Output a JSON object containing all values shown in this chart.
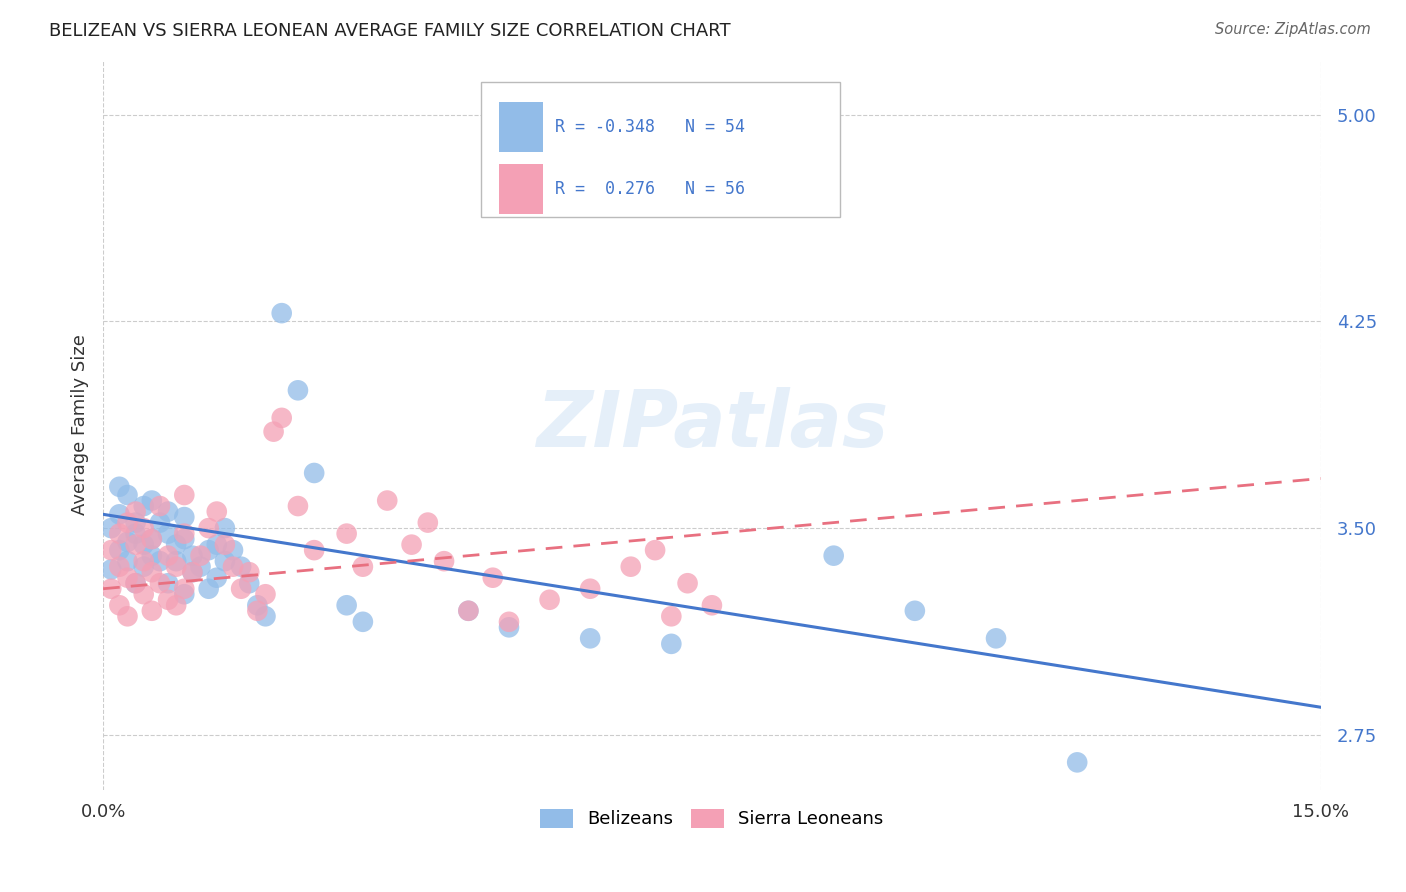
{
  "title": "BELIZEAN VS SIERRA LEONEAN AVERAGE FAMILY SIZE CORRELATION CHART",
  "source": "Source: ZipAtlas.com",
  "ylabel": "Average Family Size",
  "xlim": [
    0.0,
    0.15
  ],
  "ylim": [
    2.55,
    5.2
  ],
  "yticks": [
    2.75,
    3.5,
    4.25,
    5.0
  ],
  "grid_color": "#cccccc",
  "bg_color": "#ffffff",
  "watermark": "ZIPatlas",
  "belizean_color": "#92bce8",
  "sierra_leonean_color": "#f4a0b5",
  "belizean_line_color": "#4477cc",
  "sierra_leonean_line_color": "#e87080",
  "R_belizean": -0.348,
  "N_belizean": 54,
  "R_sierra": 0.276,
  "N_sierra": 56,
  "blue_line_x0": 0.0,
  "blue_line_y0": 3.55,
  "blue_line_x1": 0.15,
  "blue_line_y1": 2.85,
  "pink_line_x0": 0.0,
  "pink_line_y0": 3.28,
  "pink_line_x1": 0.15,
  "pink_line_y1": 3.68,
  "belizean_pts_x": [
    0.001,
    0.001,
    0.002,
    0.002,
    0.002,
    0.003,
    0.003,
    0.003,
    0.004,
    0.004,
    0.004,
    0.005,
    0.005,
    0.005,
    0.006,
    0.006,
    0.006,
    0.007,
    0.007,
    0.008,
    0.008,
    0.008,
    0.009,
    0.009,
    0.01,
    0.01,
    0.01,
    0.011,
    0.011,
    0.012,
    0.013,
    0.013,
    0.014,
    0.014,
    0.015,
    0.015,
    0.016,
    0.017,
    0.018,
    0.019,
    0.02,
    0.022,
    0.024,
    0.026,
    0.03,
    0.032,
    0.045,
    0.05,
    0.06,
    0.07,
    0.09,
    0.1,
    0.11,
    0.12
  ],
  "belizean_pts_y": [
    3.5,
    3.35,
    3.55,
    3.65,
    3.42,
    3.45,
    3.38,
    3.62,
    3.48,
    3.52,
    3.3,
    3.44,
    3.58,
    3.36,
    3.46,
    3.4,
    3.6,
    3.38,
    3.52,
    3.48,
    3.56,
    3.3,
    3.44,
    3.38,
    3.46,
    3.54,
    3.26,
    3.4,
    3.34,
    3.36,
    3.42,
    3.28,
    3.44,
    3.32,
    3.38,
    3.5,
    3.42,
    3.36,
    3.3,
    3.22,
    3.18,
    4.28,
    4.0,
    3.7,
    3.22,
    3.16,
    3.2,
    3.14,
    3.1,
    3.08,
    3.4,
    3.2,
    3.1,
    2.65
  ],
  "sierra_pts_x": [
    0.001,
    0.001,
    0.002,
    0.002,
    0.002,
    0.003,
    0.003,
    0.003,
    0.004,
    0.004,
    0.004,
    0.005,
    0.005,
    0.005,
    0.006,
    0.006,
    0.006,
    0.007,
    0.007,
    0.008,
    0.008,
    0.009,
    0.009,
    0.01,
    0.01,
    0.01,
    0.011,
    0.012,
    0.013,
    0.014,
    0.015,
    0.016,
    0.017,
    0.018,
    0.019,
    0.02,
    0.021,
    0.022,
    0.024,
    0.026,
    0.03,
    0.032,
    0.035,
    0.038,
    0.04,
    0.042,
    0.045,
    0.048,
    0.05,
    0.055,
    0.06,
    0.065,
    0.068,
    0.07,
    0.072,
    0.075
  ],
  "sierra_pts_y": [
    3.42,
    3.28,
    3.48,
    3.36,
    3.22,
    3.52,
    3.32,
    3.18,
    3.44,
    3.3,
    3.56,
    3.38,
    3.26,
    3.5,
    3.34,
    3.2,
    3.46,
    3.3,
    3.58,
    3.4,
    3.24,
    3.36,
    3.22,
    3.48,
    3.28,
    3.62,
    3.34,
    3.4,
    3.5,
    3.56,
    3.44,
    3.36,
    3.28,
    3.34,
    3.2,
    3.26,
    3.85,
    3.9,
    3.58,
    3.42,
    3.48,
    3.36,
    3.6,
    3.44,
    3.52,
    3.38,
    3.2,
    3.32,
    3.16,
    3.24,
    3.28,
    3.36,
    3.42,
    3.18,
    3.3,
    3.22
  ]
}
